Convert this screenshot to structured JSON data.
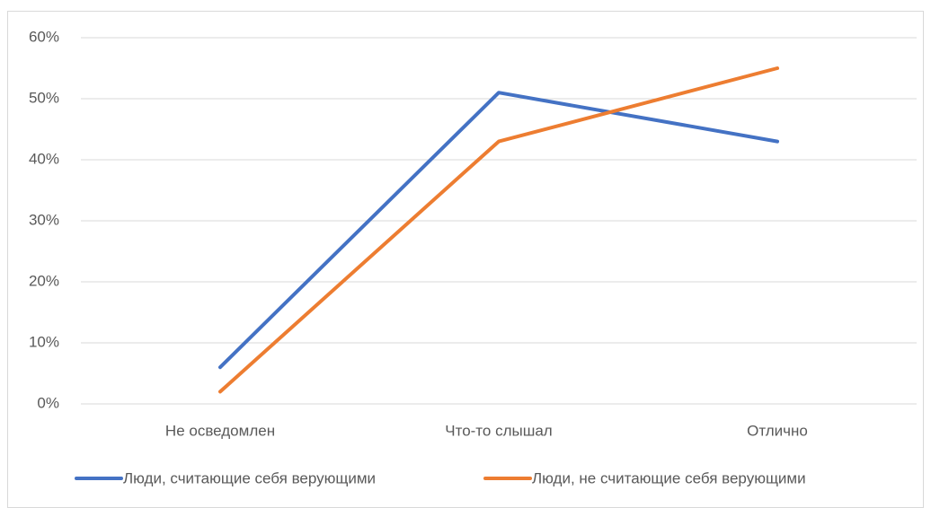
{
  "chart_data": {
    "type": "line",
    "categories": [
      "Не осведомлен",
      "Что-то слышал",
      "Отлично"
    ],
    "series": [
      {
        "name": "Люди, считающие себя верующими",
        "color": "#4472c4",
        "values": [
          6,
          51,
          43
        ]
      },
      {
        "name": "Люди, не считающие себя верующими",
        "color": "#ed7d31",
        "values": [
          2,
          43,
          55
        ]
      }
    ],
    "ylim": [
      0,
      60
    ],
    "yticks": [
      {
        "value": 0,
        "label": "0%"
      },
      {
        "value": 10,
        "label": "10%"
      },
      {
        "value": 20,
        "label": "20%"
      },
      {
        "value": 30,
        "label": "30%"
      },
      {
        "value": 40,
        "label": "40%"
      },
      {
        "value": 50,
        "label": "50%"
      },
      {
        "value": 60,
        "label": "60%"
      }
    ],
    "grid": true,
    "legend": "bottom"
  }
}
